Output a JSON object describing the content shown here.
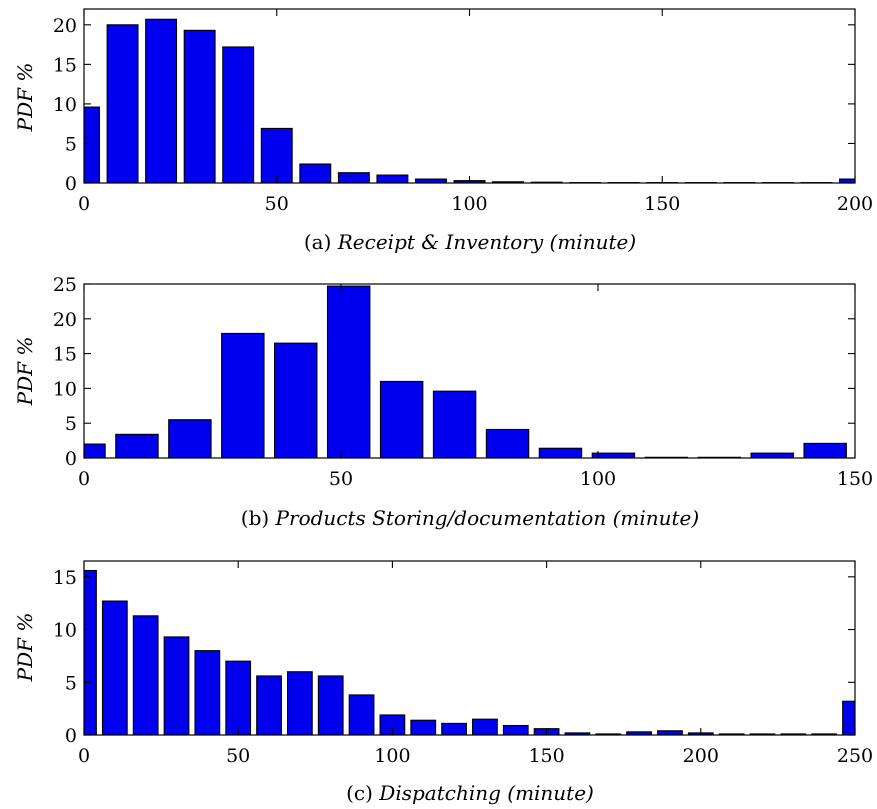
{
  "colors": {
    "bar": "#0000ee",
    "edge": "#000000"
  },
  "chart_data": [
    {
      "type": "bar",
      "caption": {
        "prefix": "(a) ",
        "text": "Receipt & Inventory (minute)"
      },
      "ylabel": "PDF %",
      "xlim": [
        0,
        200
      ],
      "ylim": [
        0,
        22
      ],
      "xticks": [
        0,
        50,
        100,
        150,
        200
      ],
      "yticks": [
        0,
        5,
        10,
        15,
        20
      ],
      "bin_width": 10,
      "x": [
        0,
        10,
        20,
        30,
        40,
        50,
        60,
        70,
        80,
        90,
        100,
        110,
        120,
        130,
        140,
        150,
        160,
        170,
        180,
        190,
        200
      ],
      "values": [
        9.6,
        20.0,
        20.7,
        19.3,
        17.2,
        6.9,
        2.4,
        1.3,
        1.0,
        0.5,
        0.3,
        0.15,
        0.1,
        0.05,
        0.05,
        0.05,
        0.05,
        0.05,
        0.05,
        0.05,
        0.5
      ]
    },
    {
      "type": "bar",
      "caption": {
        "prefix": "(b) ",
        "text": "Products Storing/documentation (minute)"
      },
      "ylabel": "PDF %",
      "xlim": [
        0,
        150
      ],
      "ylim": [
        0,
        25
      ],
      "xticks": [
        0,
        50,
        100,
        150
      ],
      "yticks": [
        0,
        5,
        10,
        15,
        20,
        25
      ],
      "bin_width": 10.3,
      "x": [
        0,
        10.3,
        20.6,
        30.9,
        41.2,
        51.5,
        61.8,
        72.1,
        82.4,
        92.7,
        103.0,
        113.3,
        123.6,
        133.9,
        144.2
      ],
      "values": [
        2.0,
        3.4,
        5.5,
        17.9,
        16.5,
        24.7,
        11.0,
        9.6,
        4.1,
        1.4,
        0.7,
        0.1,
        0.1,
        0.7,
        2.1
      ]
    },
    {
      "type": "bar",
      "caption": {
        "prefix": "(c) ",
        "text": "Dispatching (minute)"
      },
      "ylabel": "PDF %",
      "xlim": [
        0,
        250
      ],
      "ylim": [
        0,
        16.5
      ],
      "xticks": [
        0,
        50,
        100,
        150,
        200,
        250
      ],
      "yticks": [
        0,
        5,
        10,
        15
      ],
      "bin_width": 10,
      "x": [
        0,
        10,
        20,
        30,
        40,
        50,
        60,
        70,
        80,
        90,
        100,
        110,
        120,
        130,
        140,
        150,
        160,
        170,
        180,
        190,
        200,
        210,
        220,
        230,
        240,
        250
      ],
      "values": [
        15.6,
        12.7,
        11.3,
        9.3,
        8.0,
        7.0,
        5.6,
        6.0,
        5.6,
        3.8,
        1.9,
        1.4,
        1.1,
        1.5,
        0.9,
        0.6,
        0.2,
        0.1,
        0.3,
        0.4,
        0.2,
        0.1,
        0.1,
        0.1,
        0.1,
        3.2
      ]
    }
  ]
}
